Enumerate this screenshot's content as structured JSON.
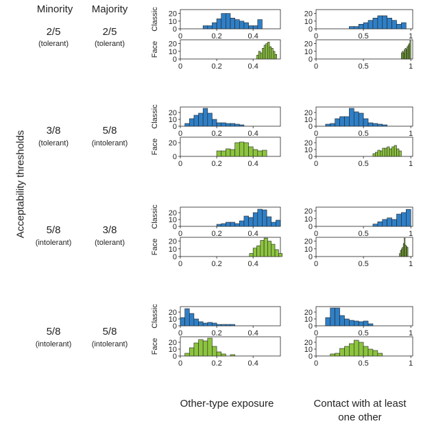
{
  "headers": {
    "minority": "Minority",
    "majority": "Majority"
  },
  "y_axis_title": "Acceptability thresholds",
  "x_titles": {
    "exposure": "Other-type exposure",
    "contact_line1": "Contact with at least",
    "contact_line2": "one other"
  },
  "rows": [
    {
      "minority": "2/5",
      "minority_tag": "(tolerant)",
      "majority": "2/5",
      "majority_tag": "(tolerant)"
    },
    {
      "minority": "3/8",
      "minority_tag": "(tolerant)",
      "majority": "5/8",
      "majority_tag": "(intolerant)"
    },
    {
      "minority": "5/8",
      "minority_tag": "(intolerant)",
      "majority": "3/8",
      "majority_tag": "(tolerant)"
    },
    {
      "minority": "5/8",
      "minority_tag": "(intolerant)",
      "majority": "5/8",
      "majority_tag": "(intolerant)"
    }
  ],
  "colors": {
    "classic": "#2f7fc6",
    "face": "#8cc43f",
    "edge": "#222222"
  },
  "chart_data": [
    {
      "type": "bar",
      "row": 0,
      "column": "exposure",
      "panel": "Classic",
      "xlim": [
        0,
        0.55
      ],
      "xticks": [
        "0",
        "0.2",
        "0.4"
      ],
      "yticks": [
        "0",
        "10",
        "20"
      ],
      "ylim": [
        0,
        25
      ],
      "bin_width": 0.025,
      "bins": [
        [
          0.125,
          4
        ],
        [
          0.15,
          4
        ],
        [
          0.175,
          8
        ],
        [
          0.2,
          13
        ],
        [
          0.225,
          20
        ],
        [
          0.25,
          20
        ],
        [
          0.275,
          14
        ],
        [
          0.3,
          12
        ],
        [
          0.325,
          10
        ],
        [
          0.35,
          8
        ],
        [
          0.375,
          4
        ],
        [
          0.4,
          4
        ],
        [
          0.425,
          12
        ]
      ]
    },
    {
      "type": "bar",
      "row": 0,
      "column": "exposure",
      "panel": "Face",
      "xlim": [
        0,
        0.55
      ],
      "xticks": [
        "0",
        "0.2",
        "0.4"
      ],
      "yticks": [
        "0",
        "10",
        "20"
      ],
      "ylim": [
        0,
        25
      ],
      "bin_width": 0.01,
      "bins": [
        [
          0.42,
          5
        ],
        [
          0.43,
          10
        ],
        [
          0.44,
          8
        ],
        [
          0.45,
          14
        ],
        [
          0.46,
          18
        ],
        [
          0.47,
          20
        ],
        [
          0.48,
          22
        ],
        [
          0.49,
          16
        ],
        [
          0.5,
          14
        ],
        [
          0.51,
          10
        ],
        [
          0.52,
          6
        ]
      ]
    },
    {
      "type": "bar",
      "row": 0,
      "column": "contact",
      "panel": "Classic",
      "xlim": [
        0,
        1.02
      ],
      "xticks": [
        "0",
        "0.5",
        "1"
      ],
      "yticks": [
        "0",
        "10",
        "20"
      ],
      "ylim": [
        0,
        25
      ],
      "bin_width": 0.05,
      "bins": [
        [
          0.35,
          3
        ],
        [
          0.4,
          3
        ],
        [
          0.45,
          6
        ],
        [
          0.5,
          8
        ],
        [
          0.55,
          11
        ],
        [
          0.6,
          14
        ],
        [
          0.65,
          17
        ],
        [
          0.7,
          17
        ],
        [
          0.75,
          14
        ],
        [
          0.8,
          11
        ],
        [
          0.85,
          6
        ],
        [
          0.9,
          8
        ]
      ]
    },
    {
      "type": "bar",
      "row": 0,
      "column": "contact",
      "panel": "Face",
      "xlim": [
        0,
        1.02
      ],
      "xticks": [
        "0",
        "0.5",
        "1"
      ],
      "yticks": [
        "0",
        "10",
        "20"
      ],
      "ylim": [
        0,
        25
      ],
      "bin_width": 0.01,
      "bins": [
        [
          0.9,
          8
        ],
        [
          0.91,
          10
        ],
        [
          0.92,
          8
        ],
        [
          0.93,
          12
        ],
        [
          0.94,
          14
        ],
        [
          0.95,
          12
        ],
        [
          0.96,
          16
        ],
        [
          0.97,
          18
        ],
        [
          0.98,
          20
        ],
        [
          0.99,
          24
        ]
      ]
    },
    {
      "type": "bar",
      "row": 1,
      "column": "exposure",
      "panel": "Classic",
      "xlim": [
        0,
        0.55
      ],
      "xticks": [
        "0",
        "0.2",
        "0.4"
      ],
      "yticks": [
        "0",
        "10",
        "20"
      ],
      "ylim": [
        0,
        28
      ],
      "bin_width": 0.025,
      "bins": [
        [
          0.025,
          4
        ],
        [
          0.05,
          11
        ],
        [
          0.075,
          16
        ],
        [
          0.1,
          19
        ],
        [
          0.125,
          26
        ],
        [
          0.15,
          19
        ],
        [
          0.175,
          10
        ],
        [
          0.2,
          5
        ],
        [
          0.225,
          5
        ],
        [
          0.25,
          4
        ],
        [
          0.275,
          4
        ],
        [
          0.3,
          3
        ],
        [
          0.325,
          2
        ]
      ]
    },
    {
      "type": "bar",
      "row": 1,
      "column": "exposure",
      "panel": "Face",
      "xlim": [
        0,
        0.55
      ],
      "xticks": [
        "0",
        "0.2",
        "0.4"
      ],
      "yticks": [
        "0",
        "20"
      ],
      "ylim": [
        0,
        28
      ],
      "bin_width": 0.025,
      "bins": [
        [
          0.2,
          8
        ],
        [
          0.225,
          8
        ],
        [
          0.25,
          11
        ],
        [
          0.275,
          10
        ],
        [
          0.3,
          20
        ],
        [
          0.325,
          21
        ],
        [
          0.35,
          20
        ],
        [
          0.375,
          14
        ],
        [
          0.4,
          10
        ],
        [
          0.425,
          8
        ],
        [
          0.45,
          9
        ]
      ]
    },
    {
      "type": "bar",
      "row": 1,
      "column": "contact",
      "panel": "Classic",
      "xlim": [
        0,
        1.02
      ],
      "xticks": [
        "0",
        "0.5",
        "1"
      ],
      "yticks": [
        "0",
        "10",
        "20"
      ],
      "ylim": [
        0,
        28
      ],
      "bin_width": 0.05,
      "bins": [
        [
          0.1,
          3
        ],
        [
          0.15,
          4
        ],
        [
          0.2,
          11
        ],
        [
          0.25,
          14
        ],
        [
          0.3,
          14
        ],
        [
          0.35,
          26
        ],
        [
          0.4,
          21
        ],
        [
          0.45,
          19
        ],
        [
          0.5,
          11
        ],
        [
          0.55,
          5
        ],
        [
          0.6,
          4
        ],
        [
          0.65,
          3
        ],
        [
          0.7,
          2
        ]
      ]
    },
    {
      "type": "bar",
      "row": 1,
      "column": "contact",
      "panel": "Face",
      "xlim": [
        0,
        1.02
      ],
      "xticks": [
        "0",
        "0.5",
        "1"
      ],
      "yticks": [
        "0",
        "10",
        "20"
      ],
      "ylim": [
        0,
        28
      ],
      "bin_width": 0.025,
      "bins": [
        [
          0.6,
          4
        ],
        [
          0.625,
          6
        ],
        [
          0.65,
          9
        ],
        [
          0.675,
          8
        ],
        [
          0.7,
          12
        ],
        [
          0.725,
          12
        ],
        [
          0.75,
          14
        ],
        [
          0.775,
          11
        ],
        [
          0.8,
          14
        ],
        [
          0.825,
          16
        ],
        [
          0.85,
          11
        ],
        [
          0.875,
          8
        ]
      ]
    },
    {
      "type": "bar",
      "row": 2,
      "column": "exposure",
      "panel": "Classic",
      "xlim": [
        0,
        0.55
      ],
      "xticks": [
        "0",
        "0.2",
        "0.4"
      ],
      "yticks": [
        "0",
        "10",
        "20"
      ],
      "ylim": [
        0,
        28
      ],
      "bin_width": 0.025,
      "bins": [
        [
          0.2,
          3
        ],
        [
          0.225,
          4
        ],
        [
          0.25,
          6
        ],
        [
          0.275,
          6
        ],
        [
          0.3,
          4
        ],
        [
          0.325,
          8
        ],
        [
          0.35,
          15
        ],
        [
          0.375,
          13
        ],
        [
          0.4,
          20
        ],
        [
          0.425,
          25
        ],
        [
          0.45,
          24
        ],
        [
          0.475,
          14
        ],
        [
          0.5,
          6
        ],
        [
          0.525,
          9
        ]
      ]
    },
    {
      "type": "bar",
      "row": 2,
      "column": "exposure",
      "panel": "Face",
      "xlim": [
        0,
        0.55
      ],
      "xticks": [
        "0",
        "0.2",
        "0.4"
      ],
      "yticks": [
        "0",
        "10",
        "20"
      ],
      "ylim": [
        0,
        25
      ],
      "bin_width": 0.02,
      "bins": [
        [
          0.38,
          4
        ],
        [
          0.4,
          11
        ],
        [
          0.42,
          14
        ],
        [
          0.44,
          21
        ],
        [
          0.46,
          24
        ],
        [
          0.48,
          20
        ],
        [
          0.5,
          16
        ],
        [
          0.52,
          9
        ],
        [
          0.54,
          4
        ]
      ]
    },
    {
      "type": "bar",
      "row": 2,
      "column": "contact",
      "panel": "Classic",
      "xlim": [
        0,
        1.02
      ],
      "xticks": [
        "0",
        "0.5",
        "1"
      ],
      "yticks": [
        "0",
        "10",
        "20"
      ],
      "ylim": [
        0,
        25
      ],
      "bin_width": 0.05,
      "bins": [
        [
          0.6,
          3
        ],
        [
          0.65,
          6
        ],
        [
          0.7,
          9
        ],
        [
          0.75,
          11
        ],
        [
          0.8,
          9
        ],
        [
          0.85,
          16
        ],
        [
          0.9,
          18
        ],
        [
          0.95,
          22
        ]
      ]
    },
    {
      "type": "bar",
      "row": 2,
      "column": "contact",
      "panel": "Face",
      "xlim": [
        0,
        1.02
      ],
      "xticks": [
        "0",
        "0.5",
        "1"
      ],
      "yticks": [
        "0",
        "10",
        "20"
      ],
      "ylim": [
        0,
        25
      ],
      "bin_width": 0.01,
      "bins": [
        [
          0.88,
          4
        ],
        [
          0.89,
          8
        ],
        [
          0.9,
          10
        ],
        [
          0.91,
          12
        ],
        [
          0.92,
          17
        ],
        [
          0.93,
          24
        ],
        [
          0.94,
          15
        ],
        [
          0.95,
          13
        ],
        [
          0.96,
          12
        ]
      ]
    },
    {
      "type": "bar",
      "row": 3,
      "column": "exposure",
      "panel": "Classic",
      "xlim": [
        0,
        0.55
      ],
      "xticks": [
        "0",
        "0.2",
        "0.4"
      ],
      "yticks": [
        "0",
        "10",
        "20"
      ],
      "ylim": [
        0,
        28
      ],
      "bin_width": 0.025,
      "bins": [
        [
          0.0,
          12
        ],
        [
          0.025,
          25
        ],
        [
          0.05,
          18
        ],
        [
          0.075,
          10
        ],
        [
          0.1,
          6
        ],
        [
          0.125,
          4
        ],
        [
          0.15,
          5
        ],
        [
          0.175,
          4
        ],
        [
          0.2,
          2
        ],
        [
          0.225,
          2
        ],
        [
          0.25,
          2
        ],
        [
          0.275,
          2
        ]
      ]
    },
    {
      "type": "bar",
      "row": 3,
      "column": "exposure",
      "panel": "Face",
      "xlim": [
        0,
        0.55
      ],
      "xticks": [
        "0",
        "0.2",
        "0.4"
      ],
      "yticks": [
        "0",
        "10",
        "20"
      ],
      "ylim": [
        0,
        28
      ],
      "bin_width": 0.025,
      "bins": [
        [
          0.025,
          4
        ],
        [
          0.05,
          12
        ],
        [
          0.075,
          19
        ],
        [
          0.1,
          24
        ],
        [
          0.125,
          22
        ],
        [
          0.15,
          26
        ],
        [
          0.175,
          14
        ],
        [
          0.2,
          6
        ],
        [
          0.225,
          3
        ],
        [
          0.275,
          2
        ]
      ]
    },
    {
      "type": "bar",
      "row": 3,
      "column": "contact",
      "panel": "Classic",
      "xlim": [
        0,
        1.02
      ],
      "xticks": [
        "0",
        "0.5",
        "1"
      ],
      "yticks": [
        "0",
        "10",
        "20"
      ],
      "ylim": [
        0,
        28
      ],
      "bin_width": 0.05,
      "bins": [
        [
          0.1,
          12
        ],
        [
          0.15,
          26
        ],
        [
          0.2,
          26
        ],
        [
          0.25,
          15
        ],
        [
          0.3,
          10
        ],
        [
          0.35,
          8
        ],
        [
          0.4,
          7
        ],
        [
          0.45,
          6
        ],
        [
          0.5,
          7
        ],
        [
          0.55,
          3
        ]
      ]
    },
    {
      "type": "bar",
      "row": 3,
      "column": "contact",
      "panel": "Face",
      "xlim": [
        0,
        1.02
      ],
      "xticks": [
        "0",
        "0.5",
        "1"
      ],
      "yticks": [
        "0",
        "10",
        "20"
      ],
      "ylim": [
        0,
        28
      ],
      "bin_width": 0.05,
      "bins": [
        [
          0.15,
          3
        ],
        [
          0.2,
          4
        ],
        [
          0.25,
          11
        ],
        [
          0.3,
          14
        ],
        [
          0.35,
          18
        ],
        [
          0.4,
          23
        ],
        [
          0.45,
          20
        ],
        [
          0.5,
          14
        ],
        [
          0.55,
          10
        ],
        [
          0.6,
          8
        ],
        [
          0.65,
          4
        ]
      ]
    }
  ]
}
